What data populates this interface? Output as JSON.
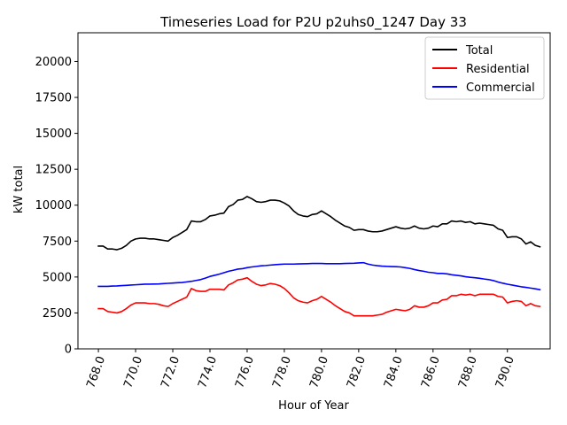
{
  "chart_data": {
    "type": "line",
    "title": "Timeseries Load for P2U p2uhs0_1247  Day 33",
    "xlabel": "Hour of Year",
    "ylabel": "kW total",
    "xlim": [
      766.9,
      792.3
    ],
    "ylim": [
      0,
      22000
    ],
    "xticks": [
      768,
      770,
      772,
      774,
      776,
      778,
      780,
      782,
      784,
      786,
      788,
      790
    ],
    "xtick_labels": [
      "768.0",
      "770.0",
      "772.0",
      "774.0",
      "776.0",
      "778.0",
      "780.0",
      "782.0",
      "784.0",
      "786.0",
      "788.0",
      "790.0"
    ],
    "yticks": [
      0,
      2500,
      5000,
      7500,
      10000,
      12500,
      15000,
      17500,
      20000
    ],
    "ytick_labels": [
      "0",
      "2500",
      "5000",
      "7500",
      "10000",
      "12500",
      "15000",
      "17500",
      "20000"
    ],
    "legend_position": "upper right",
    "x": [
      768,
      768.25,
      768.5,
      768.75,
      769,
      769.25,
      769.5,
      769.75,
      770,
      770.25,
      770.5,
      770.75,
      771,
      771.25,
      771.5,
      771.75,
      772,
      772.25,
      772.5,
      772.75,
      773,
      773.25,
      773.5,
      773.75,
      774,
      774.25,
      774.5,
      774.75,
      775,
      775.25,
      775.5,
      775.75,
      776,
      776.25,
      776.5,
      776.75,
      777,
      777.25,
      777.5,
      777.75,
      778,
      778.25,
      778.5,
      778.75,
      779,
      779.25,
      779.5,
      779.75,
      780,
      780.25,
      780.5,
      780.75,
      781,
      781.25,
      781.5,
      781.75,
      782,
      782.25,
      782.5,
      782.75,
      783,
      783.25,
      783.5,
      783.75,
      784,
      784.25,
      784.5,
      784.75,
      785,
      785.25,
      785.5,
      785.75,
      786,
      786.25,
      786.5,
      786.75,
      787,
      787.25,
      787.5,
      787.75,
      788,
      788.25,
      788.5,
      788.75,
      789,
      789.25,
      789.5,
      789.75,
      790,
      790.25,
      790.5,
      790.75,
      791,
      791.25,
      791.5,
      791.75
    ],
    "series": [
      {
        "name": "Total",
        "color": "#000000",
        "values": [
          7150,
          7150,
          6950,
          6950,
          6900,
          7000,
          7200,
          7500,
          7650,
          7700,
          7700,
          7650,
          7650,
          7600,
          7550,
          7500,
          7750,
          7900,
          8100,
          8300,
          8900,
          8850,
          8850,
          9000,
          9250,
          9300,
          9400,
          9450,
          9900,
          10050,
          10350,
          10400,
          10600,
          10450,
          10250,
          10200,
          10250,
          10350,
          10350,
          10300,
          10150,
          9950,
          9600,
          9350,
          9250,
          9200,
          9350,
          9400,
          9600,
          9400,
          9200,
          8950,
          8750,
          8550,
          8450,
          8250,
          8300,
          8300,
          8200,
          8150,
          8150,
          8200,
          8300,
          8400,
          8500,
          8400,
          8350,
          8400,
          8550,
          8400,
          8350,
          8400,
          8550,
          8500,
          8700,
          8700,
          8900,
          8850,
          8900,
          8800,
          8850,
          8700,
          8750,
          8700,
          8650,
          8600,
          8350,
          8250,
          7750,
          7800,
          7800,
          7650,
          7300,
          7450,
          7200,
          7100
        ]
      },
      {
        "name": "Residential",
        "color": "#ff0000",
        "values": [
          2800,
          2800,
          2600,
          2550,
          2500,
          2600,
          2800,
          3050,
          3200,
          3200,
          3200,
          3150,
          3150,
          3100,
          3000,
          2950,
          3150,
          3300,
          3450,
          3600,
          4200,
          4050,
          4000,
          4000,
          4150,
          4150,
          4150,
          4100,
          4450,
          4600,
          4800,
          4850,
          4950,
          4700,
          4500,
          4400,
          4450,
          4550,
          4500,
          4400,
          4200,
          3900,
          3550,
          3350,
          3250,
          3200,
          3350,
          3450,
          3650,
          3450,
          3250,
          3000,
          2800,
          2600,
          2500,
          2300,
          2300,
          2300,
          2300,
          2300,
          2350,
          2400,
          2550,
          2650,
          2750,
          2700,
          2650,
          2750,
          3000,
          2900,
          2900,
          3000,
          3200,
          3200,
          3400,
          3450,
          3700,
          3700,
          3800,
          3750,
          3800,
          3700,
          3800,
          3800,
          3800,
          3800,
          3650,
          3600,
          3200,
          3300,
          3350,
          3300,
          3000,
          3150,
          3000,
          2950
        ]
      },
      {
        "name": "Commercial",
        "color": "#0000ff",
        "values": [
          4350,
          4350,
          4350,
          4370,
          4380,
          4400,
          4420,
          4440,
          4460,
          4480,
          4500,
          4500,
          4510,
          4520,
          4540,
          4560,
          4580,
          4600,
          4620,
          4660,
          4700,
          4760,
          4820,
          4920,
          5040,
          5120,
          5200,
          5300,
          5400,
          5470,
          5550,
          5580,
          5650,
          5700,
          5740,
          5780,
          5800,
          5830,
          5860,
          5880,
          5900,
          5900,
          5900,
          5910,
          5920,
          5930,
          5940,
          5940,
          5940,
          5930,
          5930,
          5930,
          5930,
          5940,
          5950,
          5960,
          5980,
          6000,
          5900,
          5830,
          5790,
          5760,
          5740,
          5730,
          5720,
          5700,
          5650,
          5600,
          5520,
          5450,
          5400,
          5330,
          5300,
          5250,
          5250,
          5220,
          5160,
          5120,
          5080,
          5020,
          4980,
          4950,
          4910,
          4860,
          4820,
          4750,
          4650,
          4570,
          4500,
          4440,
          4380,
          4320,
          4280,
          4230,
          4180,
          4120
        ]
      }
    ]
  }
}
